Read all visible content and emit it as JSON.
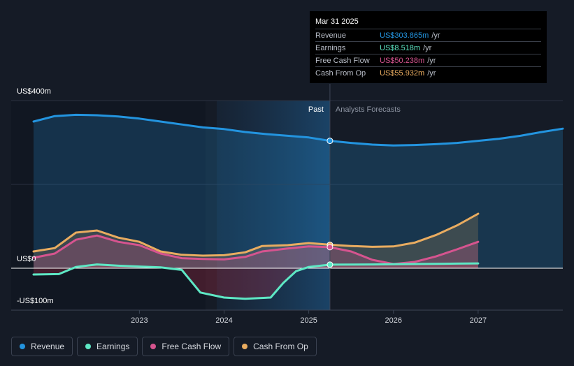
{
  "chart_data": {
    "type": "area",
    "title": "",
    "y_tick_labels": [
      "US$400m",
      "US$0",
      "-US$100m"
    ],
    "ylim": [
      -100,
      400
    ],
    "x_tick_labels": [
      "2023",
      "2024",
      "2025",
      "2026",
      "2027"
    ],
    "x_ticks": [
      2023,
      2024,
      2025,
      2026,
      2027
    ],
    "xlim": [
      2021.75,
      2028.0
    ],
    "past_label": "Past",
    "forecast_label": "Analysts Forecasts",
    "divider_x": 2025.25,
    "series": [
      {
        "name": "Revenue",
        "color": "#2394df",
        "points": [
          [
            2021.75,
            350
          ],
          [
            2022.0,
            363
          ],
          [
            2022.25,
            366
          ],
          [
            2022.5,
            365
          ],
          [
            2022.75,
            362
          ],
          [
            2023.0,
            357
          ],
          [
            2023.25,
            350
          ],
          [
            2023.5,
            343
          ],
          [
            2023.75,
            336
          ],
          [
            2024.0,
            332
          ],
          [
            2024.25,
            325
          ],
          [
            2024.5,
            320
          ],
          [
            2024.75,
            316
          ],
          [
            2025.0,
            312
          ],
          [
            2025.25,
            304
          ],
          [
            2025.5,
            299
          ],
          [
            2025.75,
            295
          ],
          [
            2026.0,
            293
          ],
          [
            2026.25,
            294
          ],
          [
            2026.5,
            296
          ],
          [
            2026.75,
            299
          ],
          [
            2027.0,
            304
          ],
          [
            2027.25,
            309
          ],
          [
            2027.5,
            316
          ],
          [
            2027.75,
            325
          ],
          [
            2028.0,
            333
          ]
        ]
      },
      {
        "name": "Earnings",
        "color": "#5ee8c5",
        "points": [
          [
            2021.75,
            -15
          ],
          [
            2022.05,
            -14
          ],
          [
            2022.25,
            3
          ],
          [
            2022.5,
            9
          ],
          [
            2022.75,
            6
          ],
          [
            2023.0,
            4
          ],
          [
            2023.25,
            2
          ],
          [
            2023.5,
            -4
          ],
          [
            2023.72,
            -58
          ],
          [
            2024.0,
            -70
          ],
          [
            2024.25,
            -73
          ],
          [
            2024.55,
            -70
          ],
          [
            2024.7,
            -35
          ],
          [
            2024.85,
            -7
          ],
          [
            2025.0,
            3
          ],
          [
            2025.25,
            8.518
          ],
          [
            2025.75,
            9
          ],
          [
            2026.25,
            10
          ],
          [
            2026.75,
            11
          ],
          [
            2027.0,
            11.5
          ]
        ]
      },
      {
        "name": "Free Cash Flow",
        "color": "#d6548f",
        "points": [
          [
            2021.75,
            25
          ],
          [
            2022.0,
            35
          ],
          [
            2022.25,
            68
          ],
          [
            2022.5,
            78
          ],
          [
            2022.75,
            63
          ],
          [
            2023.0,
            55
          ],
          [
            2023.25,
            35
          ],
          [
            2023.5,
            24
          ],
          [
            2023.75,
            22
          ],
          [
            2024.0,
            21
          ],
          [
            2024.25,
            27
          ],
          [
            2024.45,
            40
          ],
          [
            2024.75,
            47
          ],
          [
            2025.0,
            52
          ],
          [
            2025.25,
            50.238
          ],
          [
            2025.5,
            40
          ],
          [
            2025.75,
            20
          ],
          [
            2026.0,
            10
          ],
          [
            2026.25,
            15
          ],
          [
            2026.5,
            28
          ],
          [
            2026.75,
            45
          ],
          [
            2027.0,
            63
          ]
        ]
      },
      {
        "name": "Cash From Op",
        "color": "#e9ac60",
        "points": [
          [
            2021.75,
            40
          ],
          [
            2022.0,
            48
          ],
          [
            2022.25,
            85
          ],
          [
            2022.5,
            90
          ],
          [
            2022.75,
            73
          ],
          [
            2023.0,
            63
          ],
          [
            2023.25,
            40
          ],
          [
            2023.5,
            32
          ],
          [
            2023.75,
            30
          ],
          [
            2024.0,
            31
          ],
          [
            2024.25,
            38
          ],
          [
            2024.45,
            53
          ],
          [
            2024.75,
            55
          ],
          [
            2025.0,
            60
          ],
          [
            2025.25,
            55.932
          ],
          [
            2025.5,
            53
          ],
          [
            2025.75,
            51
          ],
          [
            2026.0,
            52
          ],
          [
            2026.25,
            61
          ],
          [
            2026.5,
            79
          ],
          [
            2026.75,
            102
          ],
          [
            2027.0,
            130
          ]
        ]
      }
    ]
  },
  "tooltip": {
    "date": "Mar 31 2025",
    "rows": [
      {
        "label": "Revenue",
        "value": "US$303.865m",
        "unit": "/yr",
        "color": "#2394df"
      },
      {
        "label": "Earnings",
        "value": "US$8.518m",
        "unit": "/yr",
        "color": "#5ee8c5"
      },
      {
        "label": "Free Cash Flow",
        "value": "US$50.238m",
        "unit": "/yr",
        "color": "#d6548f"
      },
      {
        "label": "Cash From Op",
        "value": "US$55.932m",
        "unit": "/yr",
        "color": "#e9ac60"
      }
    ]
  },
  "legend": [
    {
      "label": "Revenue",
      "color": "#2394df"
    },
    {
      "label": "Earnings",
      "color": "#5ee8c5"
    },
    {
      "label": "Free Cash Flow",
      "color": "#d6548f"
    },
    {
      "label": "Cash From Op",
      "color": "#e9ac60"
    }
  ]
}
